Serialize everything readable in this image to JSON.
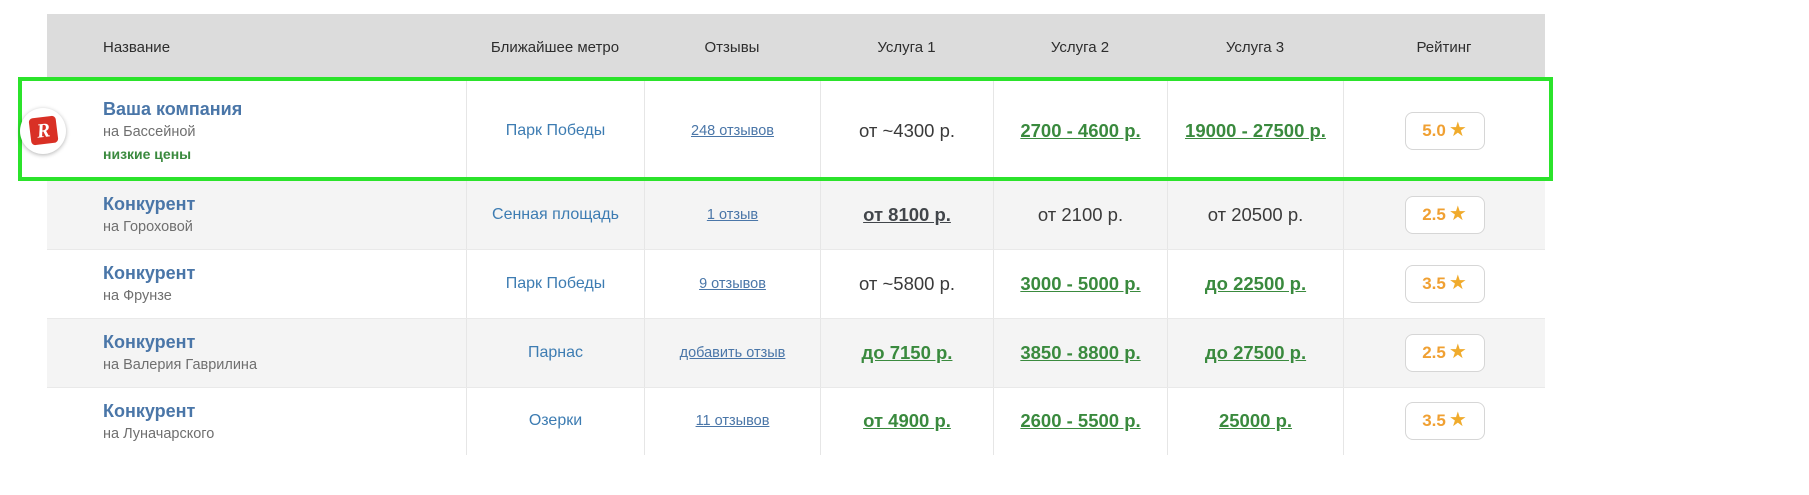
{
  "icons": {
    "star": "★",
    "logo_letter": "R"
  },
  "colors": {
    "highlight_border": "#2be32b",
    "header_bg": "#dcdcdc",
    "link_blue": "#4a76a8",
    "price_green": "#3a8a3e",
    "rating_orange": "#f0a032",
    "logo_red": "#d93025",
    "alt_row_bg": "#f4f4f4"
  },
  "table": {
    "headers": [
      "Название",
      "Ближайшее метро",
      "Отзывы",
      "Услуга 1",
      "Услуга 2",
      "Услуга 3",
      "Рейтинг"
    ],
    "rows": [
      {
        "name": "Ваша компания",
        "address": "на Бассейной",
        "tagline": "низкие цены",
        "metro": "Парк Победы",
        "reviews": "248 отзывов",
        "service1": "от ~4300 р.",
        "service2": "2700 - 4600 р.",
        "service3": "19000 - 27500 р.",
        "rating": "5.0"
      },
      {
        "name": "Конкурент",
        "address": "на Гороховой",
        "metro": "Сенная площадь",
        "reviews": "1 отзыв",
        "service1": "от 8100 р.",
        "service2": "от 2100 р.",
        "service3": "от 20500 р.",
        "rating": "2.5"
      },
      {
        "name": "Конкурент",
        "address": "на Фрунзе",
        "metro": "Парк Победы",
        "reviews": "9 отзывов",
        "service1": "от ~5800 р.",
        "service2": "3000 - 5000 р.",
        "service3": "до 22500 р.",
        "rating": "3.5"
      },
      {
        "name": "Конкурент",
        "address": "на Валерия Гаврилина",
        "metro": "Парнас",
        "reviews": "добавить отзыв",
        "service1": "до 7150 р.",
        "service2": "3850 - 8800 р.",
        "service3": "до 27500 р.",
        "rating": "2.5"
      },
      {
        "name": "Конкурент",
        "address": "на Луначарского",
        "metro": "Озерки",
        "reviews": "11 отзывов",
        "service1": "от 4900 р.",
        "service2": "2600 - 5500 р.",
        "service3": "25000 р.",
        "rating": "3.5"
      }
    ]
  }
}
